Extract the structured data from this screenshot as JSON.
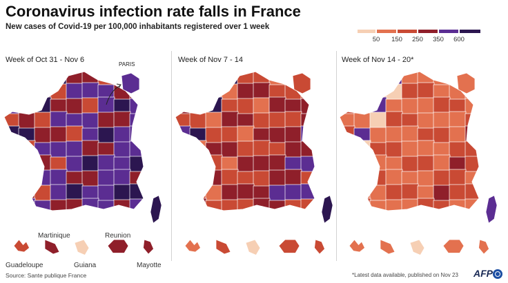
{
  "title": "Coronavirus infection rate falls in France",
  "subtitle": "New cases of Covid-19 per 100,000 inhabitants registered over 1 week",
  "legend": {
    "thresholds": [
      "50",
      "150",
      "250",
      "350",
      "600"
    ],
    "colors": [
      "#f6cfb4",
      "#e3714f",
      "#c94a34",
      "#8f1f2a",
      "#5b2d92",
      "#2c1650"
    ]
  },
  "panels": [
    {
      "title": "Week of Oct 31 - Nov 6",
      "shades": [
        4,
        4,
        5,
        3,
        4,
        3,
        5,
        4,
        4,
        5,
        3,
        4,
        2,
        4,
        5,
        3,
        4,
        2,
        3,
        4,
        4,
        5,
        3,
        2,
        4
      ]
    },
    {
      "title": "Week of Nov 7 - 14",
      "shades": [
        2,
        3,
        4,
        2,
        3,
        2,
        3,
        3,
        2,
        4,
        2,
        3,
        1,
        3,
        4,
        2,
        3,
        1,
        2,
        3,
        4,
        5,
        2,
        2,
        3
      ]
    },
    {
      "title": "Week of Nov 14 - 20*",
      "shades": [
        1,
        2,
        2,
        1,
        2,
        1,
        2,
        2,
        1,
        2,
        1,
        2,
        0,
        1,
        2,
        1,
        2,
        1,
        1,
        2,
        3,
        4,
        1,
        1,
        2
      ]
    }
  ],
  "paris_label": "PARIS",
  "overseas": {
    "martinique": "Martinique",
    "reunion": "Reunion",
    "guadeloupe": "Guadeloupe",
    "guiana": "Guiana",
    "mayotte": "Mayotte"
  },
  "source": "Source: Sante publique France",
  "footnote": "*Latest data available, published on Nov 23",
  "credit": "AFP"
}
